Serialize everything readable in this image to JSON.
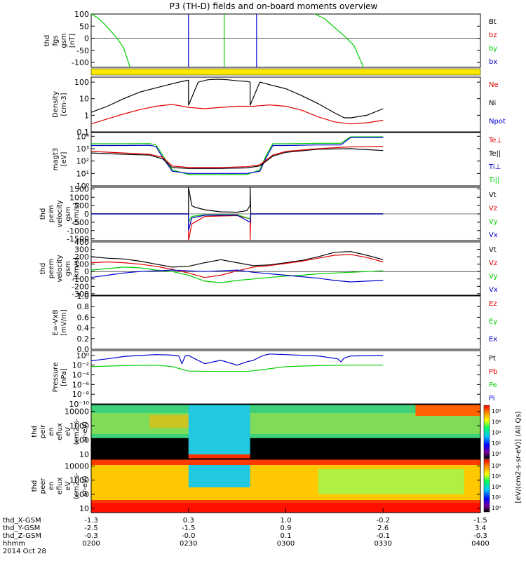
{
  "title": "P3 (TH-D) fields and on-board moments overview",
  "colors": {
    "black": "#000000",
    "red": "#e00000",
    "green": "#00cc00",
    "blue": "#0000cc",
    "yellow": "#ffe800"
  },
  "chart_data": [
    {
      "id": "fgs",
      "type": "line",
      "ylabel": [
        "thd",
        "fgs",
        "gsm",
        "[nT]"
      ],
      "ylim": [
        -120,
        100
      ],
      "ticks": [
        "100",
        "50",
        "0",
        "-50",
        "-100"
      ],
      "tick_values": [
        100,
        50,
        0,
        -50,
        -100
      ],
      "legend": [
        {
          "name": "Bt",
          "color": "#000000"
        },
        {
          "name": "bz",
          "color": "#e00000"
        },
        {
          "name": "by",
          "color": "#00cc00"
        },
        {
          "name": "bx",
          "color": "#0000cc"
        }
      ],
      "series": [
        {
          "name": "by",
          "color": "#00cc00",
          "x": [
            0.0,
            2.0,
            4.0,
            6.0,
            8.0,
            10.0,
            12.0
          ],
          "y": [
            100,
            85,
            60,
            30,
            0,
            -40,
            -120
          ]
        },
        {
          "name": "by",
          "color": "#00cc00",
          "x": [
            69.0,
            72.0,
            75.0,
            78.0,
            81.0,
            84.0
          ],
          "y": [
            100,
            80,
            45,
            10,
            -30,
            -120
          ]
        },
        {
          "name": "bx",
          "color": "#0000cc",
          "x": [
            30.0,
            30.0
          ],
          "y": [
            -120,
            100
          ]
        },
        {
          "name": "bz",
          "color": "#00cc00",
          "x": [
            41.0,
            41.0
          ],
          "y": [
            -120,
            100
          ]
        },
        {
          "name": "bx",
          "color": "#0000cc",
          "x": [
            51.0,
            51.0
          ],
          "y": [
            -120,
            100
          ]
        }
      ]
    },
    {
      "id": "density",
      "type": "line",
      "scale": "log",
      "ylabel": [
        "Density",
        "[cm-3]"
      ],
      "ylim": [
        0.1,
        200
      ],
      "ticks": [
        "100",
        "10",
        "1",
        "0.1"
      ],
      "tick_values": [
        100,
        10,
        1,
        0.1
      ],
      "legend": [
        {
          "name": "Ne",
          "color": "#e00000"
        },
        {
          "name": "Ni",
          "color": "#000000"
        },
        {
          "name": "Npot",
          "color": "#0000cc"
        }
      ],
      "series": [
        {
          "name": "Ni",
          "color": "#000000",
          "x": [
            0.0,
            5.0,
            10.0,
            15.0,
            20.0,
            25.0,
            28.0,
            30.0,
            30.0,
            33.0,
            36.0,
            39.0,
            42.0,
            45.0,
            48.0,
            49.0,
            49.0,
            52.0,
            55.0,
            60.0,
            65.0,
            70.0,
            75.0,
            78.0,
            80.0,
            85.0,
            90.0
          ],
          "y": [
            1.5,
            3.5,
            10,
            25,
            45,
            80,
            110,
            130,
            4,
            100,
            140,
            150,
            140,
            120,
            110,
            100,
            4,
            100,
            70,
            40,
            15,
            5,
            1.4,
            0.7,
            0.7,
            1.0,
            2.5
          ]
        },
        {
          "name": "Ne",
          "color": "#e00000",
          "x": [
            0.0,
            5.0,
            10.0,
            15.0,
            20.0,
            25.0,
            30.0,
            35.0,
            40.0,
            45.0,
            50.0,
            55.0,
            60.0,
            65.0,
            70.0,
            75.0,
            80.0,
            85.0,
            90.0
          ],
          "y": [
            0.3,
            0.6,
            1.2,
            2.2,
            3.5,
            4.5,
            3,
            2.5,
            3,
            3.5,
            3.5,
            4.2,
            3.5,
            2,
            0.8,
            0.4,
            0.3,
            0.35,
            0.5
          ]
        }
      ]
    },
    {
      "id": "temperature",
      "type": "line",
      "scale": "log",
      "ylabel": [
        "magt3",
        "[eV]"
      ],
      "ylim": [
        1,
        20000
      ],
      "ticks": [
        "10⁴",
        "10³",
        "10²",
        "10¹",
        "10⁰"
      ],
      "tick_values": [
        10000,
        1000,
        100,
        10,
        1
      ],
      "legend": [
        {
          "name": "Te⊥",
          "color": "#e00000"
        },
        {
          "name": "Te||",
          "color": "#000000"
        },
        {
          "name": "Ti⊥",
          "color": "#0000cc"
        },
        {
          "name": "Ti||",
          "color": "#00cc00"
        }
      ],
      "series": [
        {
          "name": "Ti||",
          "color": "#00cc00",
          "x": [
            0.0,
            10.0,
            18.0,
            20.0,
            22.0,
            25.0,
            30.0,
            40.0,
            48.0,
            52.0,
            54.0,
            56.0,
            60.0,
            70.0,
            77.0,
            80.0,
            90.0
          ],
          "y": [
            2500,
            2500,
            2600,
            2000,
            300,
            20,
            8,
            8,
            8,
            20,
            300,
            2500,
            2500,
            2700,
            2700,
            9000,
            9000
          ]
        },
        {
          "name": "Ti⊥",
          "color": "#0000cc",
          "x": [
            0.0,
            10.0,
            18.0,
            20.0,
            22.0,
            25.0,
            30.0,
            40.0,
            48.0,
            52.0,
            54.0,
            56.0,
            60.0,
            70.0,
            77.0,
            80.0,
            90.0
          ],
          "y": [
            1800,
            1800,
            1900,
            1500,
            200,
            15,
            10,
            10,
            10,
            15,
            200,
            1800,
            1800,
            2000,
            2000,
            8000,
            8000
          ]
        },
        {
          "name": "Te||",
          "color": "#000000",
          "x": [
            0.0,
            10.0,
            18.0,
            22.0,
            25.0,
            30.0,
            40.0,
            48.0,
            52.0,
            56.0,
            60.0,
            70.0,
            80.0,
            90.0
          ],
          "y": [
            450,
            350,
            300,
            150,
            30,
            25,
            25,
            28,
            40,
            250,
            500,
            900,
            1000,
            700
          ]
        },
        {
          "name": "Te⊥",
          "color": "#e00000",
          "x": [
            0.0,
            10.0,
            18.0,
            22.0,
            25.0,
            30.0,
            40.0,
            48.0,
            52.0,
            56.0,
            60.0,
            70.0,
            80.0,
            90.0
          ],
          "y": [
            600,
            450,
            350,
            200,
            40,
            30,
            30,
            35,
            50,
            300,
            600,
            1000,
            1400,
            1500
          ]
        }
      ]
    },
    {
      "id": "peim",
      "type": "line",
      "ylabel": [
        "thd",
        "peim",
        "velocity",
        "gsm",
        "[km/s]"
      ],
      "ylim": [
        -1600,
        1600
      ],
      "ticks": [
        "1500",
        "1000",
        "500",
        "0",
        "-500",
        "-1000",
        "-1500"
      ],
      "tick_values": [
        1500,
        1000,
        500,
        0,
        -500,
        -1000,
        -1500
      ],
      "legend": [
        {
          "name": "Vt",
          "color": "#000000"
        },
        {
          "name": "Vz",
          "color": "#e00000"
        },
        {
          "name": "Vy",
          "color": "#00cc00"
        },
        {
          "name": "Vx",
          "color": "#0000cc"
        }
      ],
      "series": [
        {
          "name": "Vt",
          "color": "#000000",
          "x": [
            0.0,
            30.0,
            30.0,
            31.0,
            32.0,
            35.0,
            40.0,
            45.0,
            48.0,
            49.0,
            49.0,
            49.2,
            90.0
          ],
          "y": [
            0,
            0,
            1600,
            500,
            400,
            250,
            120,
            100,
            200,
            500,
            1600,
            0,
            0
          ]
        },
        {
          "name": "Vz",
          "color": "#e00000",
          "x": [
            0.0,
            30.0,
            30.0,
            31.0,
            35.0,
            45.0,
            49.0,
            49.0,
            49.2,
            90.0
          ],
          "y": [
            0,
            0,
            -1600,
            -600,
            -150,
            -100,
            -300,
            -1600,
            0,
            0
          ]
        },
        {
          "name": "Vy",
          "color": "#00cc00",
          "x": [
            0.0,
            30.0,
            30.0,
            31.0,
            35.0,
            45.0,
            49.0,
            49.2,
            90.0
          ],
          "y": [
            0,
            0,
            -500,
            -150,
            -50,
            -50,
            -300,
            0,
            0
          ]
        },
        {
          "name": "Vx",
          "color": "#0000cc",
          "x": [
            0.0,
            30.0,
            30.0,
            31.0,
            35.0,
            45.0,
            49.0,
            49.2,
            90.0
          ],
          "y": [
            0,
            0,
            -1000,
            -250,
            -80,
            -80,
            -500,
            0,
            0
          ]
        }
      ]
    },
    {
      "id": "peem",
      "type": "line",
      "ylabel": [
        "thd",
        "peem",
        "velocity",
        "gsm",
        "[km/s]"
      ],
      "ylim": [
        -320,
        400
      ],
      "ticks": [
        "400",
        "300",
        "200",
        "100",
        "0",
        "-100",
        "-200",
        "-300"
      ],
      "tick_values": [
        400,
        300,
        200,
        100,
        0,
        -100,
        -200,
        -300
      ],
      "legend": [
        {
          "name": "Vt",
          "color": "#000000"
        },
        {
          "name": "Vz",
          "color": "#e00000"
        },
        {
          "name": "Vy",
          "color": "#00cc00"
        },
        {
          "name": "Vx",
          "color": "#0000cc"
        }
      ],
      "series": [
        {
          "name": "Vt",
          "color": "#000000",
          "x": [
            0.0,
            5.0,
            10.0,
            15.0,
            20.0,
            25.0,
            30.0,
            35.0,
            40.0,
            45.0,
            50.0,
            55.0,
            60.0,
            65.0,
            70.0,
            75.0,
            80.0,
            85.0,
            90.0
          ],
          "y": [
            200,
            180,
            170,
            140,
            100,
            60,
            70,
            120,
            160,
            120,
            80,
            90,
            120,
            150,
            200,
            260,
            270,
            220,
            160
          ]
        },
        {
          "name": "Vz",
          "color": "#e00000",
          "x": [
            0.0,
            5.0,
            10.0,
            15.0,
            20.0,
            25.0,
            30.0,
            35.0,
            40.0,
            45.0,
            50.0,
            55.0,
            60.0,
            65.0,
            70.0,
            75.0,
            80.0,
            85.0,
            90.0
          ],
          "y": [
            120,
            130,
            120,
            100,
            70,
            30,
            -20,
            -80,
            -50,
            10,
            60,
            80,
            110,
            140,
            180,
            220,
            230,
            190,
            130
          ]
        },
        {
          "name": "Vy",
          "color": "#00cc00",
          "x": [
            0.0,
            5.0,
            10.0,
            15.0,
            20.0,
            25.0,
            30.0,
            35.0,
            40.0,
            45.0,
            50.0,
            55.0,
            60.0,
            65.0,
            70.0,
            75.0,
            80.0,
            85.0,
            90.0
          ],
          "y": [
            20,
            40,
            60,
            50,
            20,
            0,
            -50,
            -130,
            -150,
            -120,
            -100,
            -80,
            -60,
            -50,
            -30,
            -20,
            -10,
            0,
            10
          ]
        },
        {
          "name": "Vx",
          "color": "#0000cc",
          "x": [
            0.0,
            5.0,
            10.0,
            15.0,
            20.0,
            25.0,
            30.0,
            35.0,
            40.0,
            45.0,
            50.0,
            55.0,
            60.0,
            65.0,
            70.0,
            75.0,
            80.0,
            85.0,
            90.0
          ],
          "y": [
            -80,
            -50,
            -20,
            0,
            10,
            20,
            10,
            0,
            10,
            20,
            -10,
            -30,
            -50,
            -70,
            -90,
            -120,
            -140,
            -130,
            -120
          ]
        }
      ]
    },
    {
      "id": "efield",
      "type": "line",
      "ylabel": [
        "E=-VxB",
        "[mV/m]"
      ],
      "ylim": [
        0,
        1.0
      ],
      "ticks": [
        "1.0",
        "0.8",
        "0.6",
        "0.4",
        "0.2",
        "0.0"
      ],
      "tick_values": [
        1.0,
        0.8,
        0.6,
        0.4,
        0.2,
        0.0
      ],
      "legend": [
        {
          "name": "Ez",
          "color": "#e00000"
        },
        {
          "name": "Ey",
          "color": "#00cc00"
        },
        {
          "name": "Ex",
          "color": "#0000cc"
        }
      ],
      "series": []
    },
    {
      "id": "pressure",
      "type": "line",
      "scale": "log",
      "ylabel": [
        "Pressure",
        "[nPa]"
      ],
      "ylim": [
        1e-10,
        10
      ],
      "ticks": [
        "10⁰",
        "10⁻²",
        "10⁻⁴",
        "10⁻⁶",
        "10⁻⁸",
        "10⁻¹⁰"
      ],
      "tick_values": [
        1,
        0.01,
        0.0001,
        1e-06,
        1e-08,
        1e-10
      ],
      "legend": [
        {
          "name": "Pt",
          "color": "#000000"
        },
        {
          "name": "Pb",
          "color": "#e00000"
        },
        {
          "name": "Pe",
          "color": "#00cc00"
        },
        {
          "name": "Pi",
          "color": "#0000cc"
        }
      ],
      "series": [
        {
          "name": "Pi",
          "color": "#0000cc",
          "x": [
            0.0,
            5.0,
            10.0,
            15.0,
            20.0,
            25.0,
            27.0,
            28.0,
            29.0,
            30.0,
            32.0,
            35.0,
            40.0,
            45.0,
            48.0,
            50.0,
            53.0,
            55.0,
            60.0,
            70.0,
            76.0,
            77.0,
            78.0,
            80.0,
            90.0
          ],
          "y": [
            0.08,
            0.2,
            0.6,
            1,
            1.5,
            1.2,
            0.8,
            0.02,
            0.8,
            1,
            0.2,
            0.02,
            0.1,
            0.01,
            0.05,
            0.1,
            1,
            2,
            1.5,
            0.8,
            0.2,
            0.05,
            0.3,
            0.8,
            1
          ]
        },
        {
          "name": "Pe",
          "color": "#00cc00",
          "x": [
            0.0,
            10.0,
            20.0,
            25.0,
            30.0,
            40.0,
            48.0,
            52.0,
            60.0,
            70.0,
            80.0,
            90.0
          ],
          "y": [
            0.005,
            0.008,
            0.01,
            0.005,
            0.0006,
            0.0005,
            0.0005,
            0.001,
            0.005,
            0.008,
            0.01,
            0.01
          ]
        }
      ]
    },
    {
      "id": "peir",
      "type": "heatmap",
      "ylabel": [
        "thd",
        "peir",
        "en",
        "eflux",
        "eV",
        "(cm2-s-",
        "sr-eV)"
      ],
      "ylim": [
        5,
        30000
      ],
      "ticks": [
        "10000",
        "1000",
        "100",
        "10"
      ],
      "tick_values": [
        10000,
        1000,
        100,
        10
      ],
      "colorbar": {
        "ticks": [
          "10⁸",
          "10⁶",
          "10⁴",
          "10²",
          "10⁰"
        ]
      }
    },
    {
      "id": "peer",
      "type": "heatmap",
      "ylabel": [
        "thd",
        "peer",
        "en",
        "eflux",
        "eV",
        "(cm2-s-",
        "sr-eV)"
      ],
      "ylim": [
        5,
        30000
      ],
      "ticks": [
        "10000",
        "1000",
        "100",
        "10"
      ],
      "tick_values": [
        10000,
        1000,
        100,
        10
      ],
      "colorbar": {
        "ticks": [
          "10⁸",
          "10⁶",
          "10⁴",
          "10²",
          "10⁰"
        ]
      }
    }
  ],
  "xaxis": {
    "row_labels": [
      "thd_X-GSM",
      "thd_Y-GSM",
      "thd_Z-GSM",
      "hhmm",
      "2014 Oct 28"
    ],
    "columns": [
      {
        "t": 0,
        "values": [
          "-1.3",
          "-2.5",
          "-0.3",
          "0200"
        ]
      },
      {
        "t": 30,
        "values": [
          "0.3",
          "-1.5",
          "-0.0",
          "0230"
        ]
      },
      {
        "t": 60,
        "values": [
          "1.0",
          "0.9",
          "0.1",
          "0300"
        ]
      },
      {
        "t": 90,
        "values": [
          "-0.2",
          "2.6",
          "-0.1",
          "0330"
        ]
      },
      {
        "t": 120,
        "values": [
          "-1.5",
          "3.4",
          "-0.3",
          "0400"
        ]
      }
    ]
  },
  "colorbar_label": "[eV/(cm2-s-sr-eV)] (All Qs)"
}
